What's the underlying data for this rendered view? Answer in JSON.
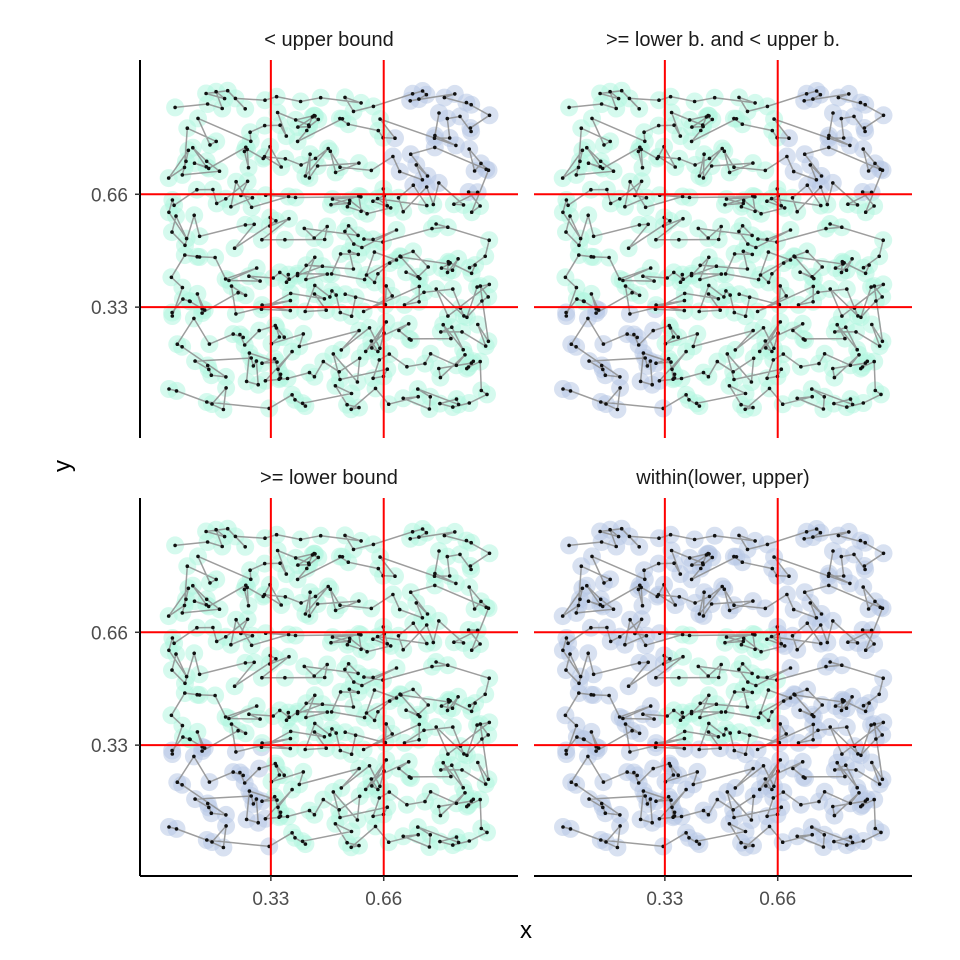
{
  "chart_data": {
    "type": "scatter",
    "layout": "facet-grid-2x2",
    "xlabel": "x",
    "ylabel": "y",
    "xlim": [
      0,
      1
    ],
    "ylim": [
      0,
      1
    ],
    "x_ticks": [
      0.33,
      0.66
    ],
    "x_tick_labels": [
      "0.33",
      "0.66"
    ],
    "y_ticks": [
      0.33,
      0.66
    ],
    "y_tick_labels": [
      "0.33",
      "0.66"
    ],
    "reference_lines": {
      "x": [
        0.33,
        0.66
      ],
      "y": [
        0.33,
        0.66
      ],
      "color": "#ff0000"
    },
    "grid": false,
    "point_count_per_panel": 400,
    "points_connected_by_path": true,
    "colors": {
      "selected_halo": "#b8c9e6",
      "unselected_halo": "#b3f5e0",
      "point": "#111111",
      "path": "#8c8c8c",
      "reference_line": "#ff0000"
    },
    "panels": [
      {
        "title": "< upper bound",
        "highlight_rule": "x > 0.66 and y > 0.66"
      },
      {
        "title": ">= lower b. and < upper b.",
        "highlight_rule": "(x > 0.66 and y > 0.66) or (x < 0.33 and y < 0.33)"
      },
      {
        "title": ">= lower bound",
        "highlight_rule": "x < 0.33 and y < 0.33"
      },
      {
        "title": "within(lower, upper)",
        "highlight_rule": "x < 0.33 or x > 0.66 or y < 0.33 or y > 0.66"
      }
    ]
  }
}
